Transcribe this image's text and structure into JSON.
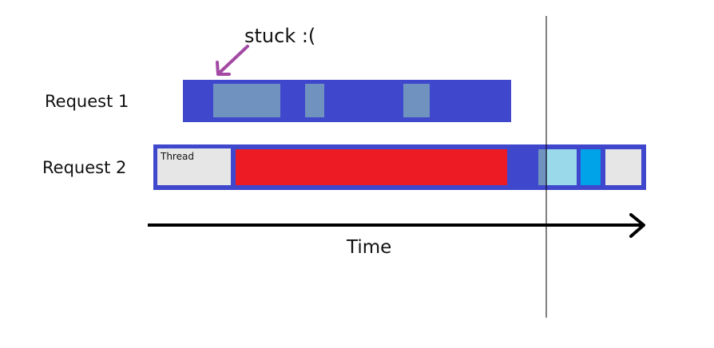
{
  "annotation": {
    "text": "stuck :(",
    "arrow_color": "#a349a4"
  },
  "rows": [
    {
      "label": "Request 1"
    },
    {
      "label": "Request 2"
    }
  ],
  "segments": {
    "thread_label": "Thread"
  },
  "axis": {
    "label": "Time"
  },
  "colors": {
    "bar": "#3f47cc",
    "waiting": "#7092be",
    "blocked": "#ed1c24",
    "idle": "#e6e6e6",
    "light_blue": "#99d9ea",
    "bright_blue": "#00a2e8",
    "line": "#000000"
  }
}
